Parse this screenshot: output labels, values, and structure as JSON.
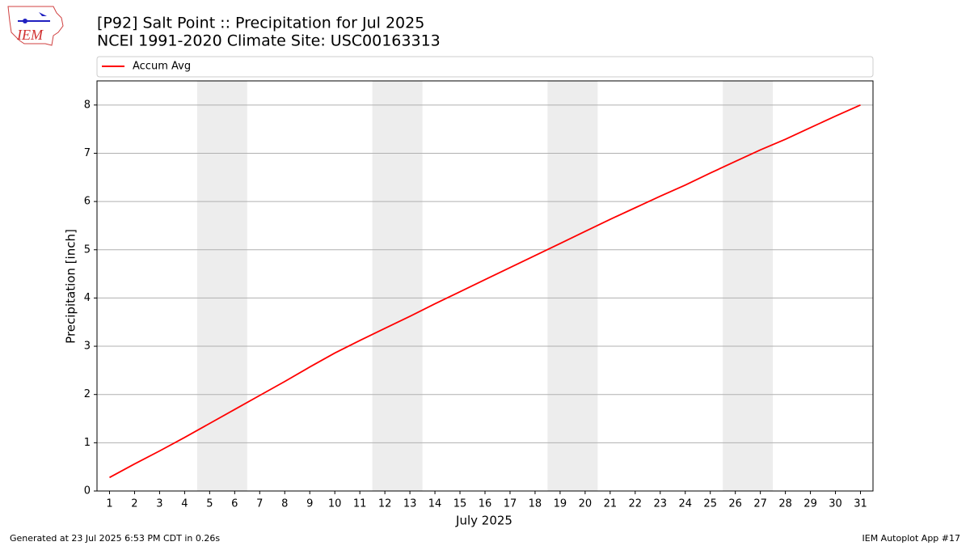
{
  "chart_data": {
    "type": "line",
    "title": "[P92] Salt Point :: Precipitation for Jul 2025",
    "subtitle": "NCEI 1991-2020 Climate Site: USC00163313",
    "xlabel": "July 2025",
    "ylabel": "Precipitation [inch]",
    "footer_left": "Generated at 23 Jul 2025 6:53 PM CDT in 0.26s",
    "footer_right": "IEM Autoplot App #17",
    "logo_text": "IEM",
    "x": [
      1,
      2,
      3,
      4,
      5,
      6,
      7,
      8,
      9,
      10,
      11,
      12,
      13,
      14,
      15,
      16,
      17,
      18,
      19,
      20,
      21,
      22,
      23,
      24,
      25,
      26,
      27,
      28,
      29,
      30,
      31
    ],
    "series": [
      {
        "name": "Accum Avg",
        "color": "#ff0000",
        "values": [
          0.28,
          0.56,
          0.83,
          1.11,
          1.4,
          1.69,
          1.98,
          2.27,
          2.57,
          2.86,
          3.12,
          3.37,
          3.62,
          3.88,
          4.13,
          4.38,
          4.63,
          4.88,
          5.13,
          5.38,
          5.63,
          5.87,
          6.11,
          6.34,
          6.59,
          6.83,
          7.07,
          7.29,
          7.53,
          7.77,
          8.0
        ]
      }
    ],
    "shaded_spans": [
      [
        4.5,
        6.5
      ],
      [
        11.5,
        13.5
      ],
      [
        18.5,
        20.5
      ],
      [
        25.5,
        27.5
      ]
    ],
    "xlim": [
      0.5,
      31.5
    ],
    "xticks": [
      1,
      2,
      3,
      4,
      5,
      6,
      7,
      8,
      9,
      10,
      11,
      12,
      13,
      14,
      15,
      16,
      17,
      18,
      19,
      20,
      21,
      22,
      23,
      24,
      25,
      26,
      27,
      28,
      29,
      30,
      31
    ],
    "ylim": [
      0,
      8.5
    ],
    "yticks": [
      0,
      1,
      2,
      3,
      4,
      5,
      6,
      7,
      8
    ],
    "grid": true,
    "legend": "top"
  }
}
